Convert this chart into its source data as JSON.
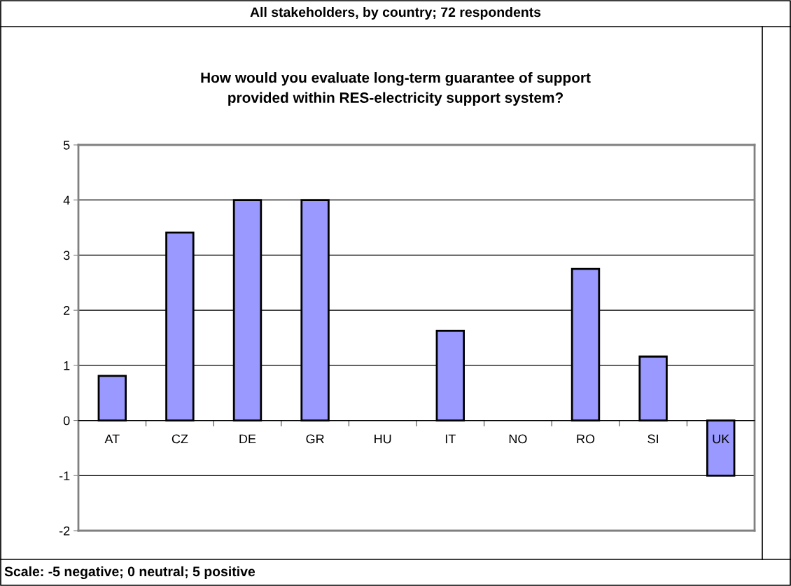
{
  "chart_data": {
    "type": "bar",
    "title": "All stakeholders, by country; 72 respondents",
    "subtitle": "How would you evaluate long-term guarantee of support\nprovided within RES-electricity support system?",
    "annotations": [
      "Scale: -5 negative; 0 neutral; 5 positive"
    ],
    "categories": [
      "AT",
      "CZ",
      "DE",
      "GR",
      "HU",
      "IT",
      "NO",
      "RO",
      "SI",
      "UK"
    ],
    "values": [
      0.81,
      3.41,
      4.0,
      4.0,
      null,
      1.63,
      null,
      2.75,
      1.16,
      -1.0
    ],
    "color": "#9999ff",
    "ylim": [
      -2,
      5
    ],
    "yticks": [
      -2,
      -1,
      0,
      1,
      2,
      3,
      4,
      5
    ],
    "grid": "y"
  }
}
